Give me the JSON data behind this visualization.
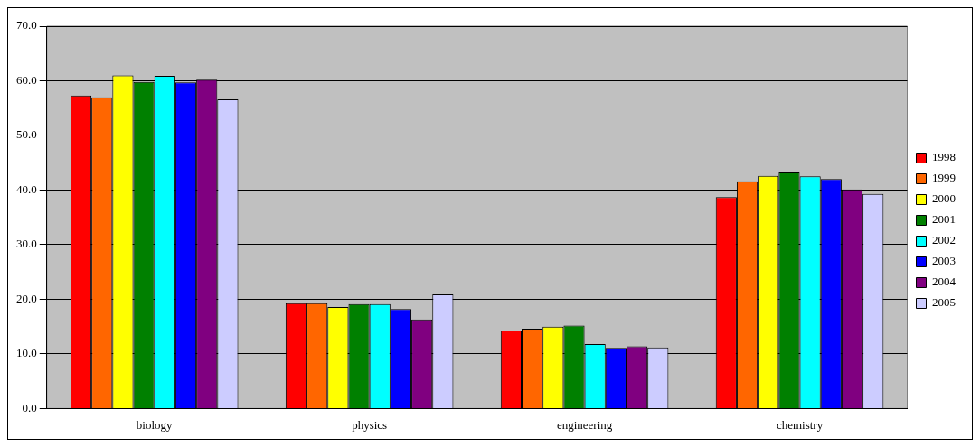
{
  "chart_data": {
    "type": "bar",
    "categories": [
      "biology",
      "physics",
      "engineering",
      "chemistry"
    ],
    "series": [
      {
        "name": "1998",
        "color": "#ff0000",
        "values": [
          57.3,
          19.3,
          14.3,
          38.7
        ]
      },
      {
        "name": "1999",
        "color": "#ff6600",
        "values": [
          57.0,
          19.3,
          14.6,
          41.6
        ]
      },
      {
        "name": "2000",
        "color": "#ffff00",
        "values": [
          61.0,
          18.6,
          15.0,
          42.6
        ]
      },
      {
        "name": "2001",
        "color": "#008000",
        "values": [
          59.8,
          19.1,
          15.2,
          43.2
        ]
      },
      {
        "name": "2002",
        "color": "#00ffff",
        "values": [
          60.9,
          19.1,
          11.8,
          42.5
        ]
      },
      {
        "name": "2003",
        "color": "#0000ff",
        "values": [
          59.7,
          18.2,
          11.1,
          42.0
        ]
      },
      {
        "name": "2004",
        "color": "#800080",
        "values": [
          60.2,
          16.3,
          11.4,
          40.1
        ]
      },
      {
        "name": "2005",
        "color": "#ccccff",
        "values": [
          56.6,
          20.9,
          11.2,
          39.3
        ]
      }
    ],
    "ylim": [
      0,
      70
    ],
    "yticks": [
      {
        "value": 0,
        "label": "0.0"
      },
      {
        "value": 10,
        "label": "10.0"
      },
      {
        "value": 20,
        "label": "20.0"
      },
      {
        "value": 30,
        "label": "30.0"
      },
      {
        "value": 40,
        "label": "40.0"
      },
      {
        "value": 50,
        "label": "50.0"
      },
      {
        "value": 60,
        "label": "60.0"
      },
      {
        "value": 70,
        "label": "70.0"
      }
    ],
    "grid": "y",
    "legend": "right"
  }
}
